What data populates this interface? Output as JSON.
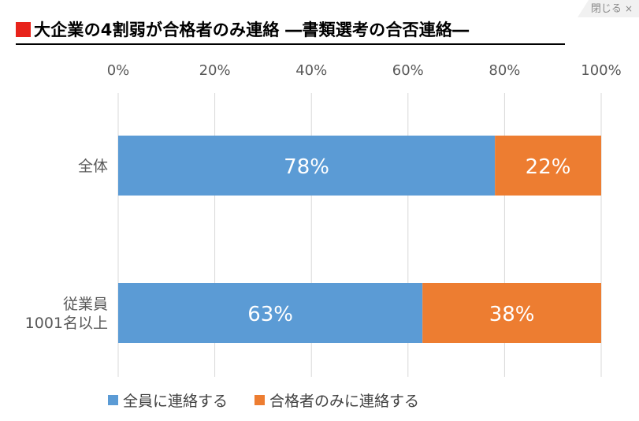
{
  "close_button": {
    "label": "閉じる",
    "icon": "×"
  },
  "title": "大企業の4割弱が合格者のみ連絡 ―書類選考の合否連絡―",
  "colors": {
    "title_marker": "#e8231b",
    "series_all": "#5b9bd5",
    "series_passed_only": "#ed7d31",
    "grid": "#d9d9d9",
    "axis_text": "#595959"
  },
  "chart_data": {
    "type": "bar",
    "orientation": "horizontal",
    "stacked": true,
    "categories": [
      "全体",
      "従業員\n1001名以上"
    ],
    "series": [
      {
        "name": "全員に連絡する",
        "values": [
          78,
          63
        ],
        "labels": [
          "78%",
          "63%"
        ],
        "color": "#5b9bd5"
      },
      {
        "name": "合格者のみに連絡する",
        "values": [
          22,
          38
        ],
        "labels": [
          "22%",
          "38%"
        ],
        "color": "#ed7d31"
      }
    ],
    "x_ticks": [
      "0%",
      "20%",
      "40%",
      "60%",
      "80%",
      "100%"
    ],
    "xlim": [
      0,
      100
    ],
    "grid": true,
    "legend_position": "bottom"
  }
}
